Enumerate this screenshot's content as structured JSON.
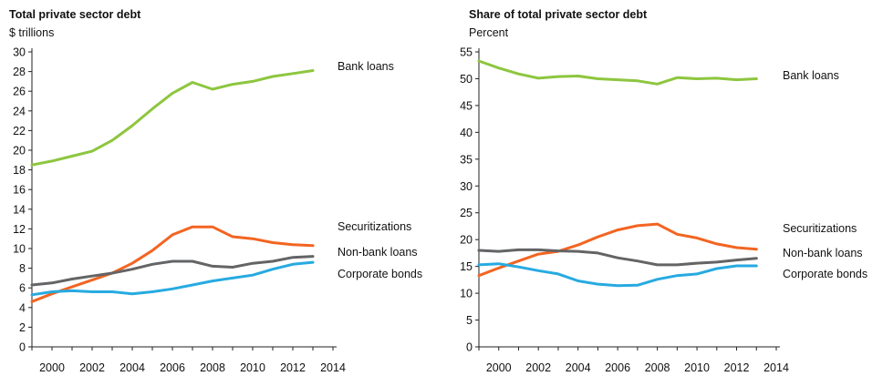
{
  "chart_data": [
    {
      "type": "line",
      "title": "Total private sector debt",
      "ylabel": "$ trillions",
      "ylim": [
        0,
        30
      ],
      "yticks": [
        0,
        2,
        4,
        6,
        8,
        10,
        12,
        14,
        16,
        18,
        20,
        22,
        24,
        26,
        28,
        30
      ],
      "xlim": [
        1999,
        2014
      ],
      "xticks": [
        2000,
        2002,
        2004,
        2006,
        2008,
        2010,
        2012,
        2014
      ],
      "grid": false,
      "x": [
        1999,
        2000,
        2001,
        2002,
        2003,
        2004,
        2005,
        2006,
        2007,
        2008,
        2009,
        2010,
        2011,
        2012,
        2013
      ],
      "series": [
        {
          "name": "Bank loans",
          "color": "#8dc63f",
          "values": [
            18.5,
            18.9,
            19.4,
            19.9,
            21.0,
            22.5,
            24.2,
            25.8,
            26.9,
            26.2,
            26.7,
            27.0,
            27.5,
            27.8,
            28.1
          ]
        },
        {
          "name": "Securitizations",
          "color": "#f26522",
          "values": [
            4.6,
            5.4,
            6.1,
            6.8,
            7.5,
            8.5,
            9.8,
            11.4,
            12.2,
            12.2,
            11.2,
            11.0,
            10.6,
            10.4,
            10.3
          ]
        },
        {
          "name": "Non-bank loans",
          "color": "#636466",
          "values": [
            6.3,
            6.5,
            6.9,
            7.2,
            7.5,
            7.9,
            8.4,
            8.7,
            8.7,
            8.2,
            8.1,
            8.5,
            8.7,
            9.1,
            9.2
          ]
        },
        {
          "name": "Corporate bonds",
          "color": "#27aae1",
          "values": [
            5.3,
            5.6,
            5.7,
            5.6,
            5.6,
            5.4,
            5.6,
            5.9,
            6.3,
            6.7,
            7.0,
            7.3,
            7.9,
            8.4,
            8.6
          ]
        }
      ]
    },
    {
      "type": "line",
      "title": "Share of total private sector debt",
      "ylabel": "Percent",
      "ylim": [
        0,
        55
      ],
      "yticks": [
        0,
        5,
        10,
        15,
        20,
        25,
        30,
        35,
        40,
        45,
        50,
        55
      ],
      "xlim": [
        1999,
        2014
      ],
      "xticks": [
        2000,
        2002,
        2004,
        2006,
        2008,
        2010,
        2012,
        2014
      ],
      "grid": false,
      "x": [
        1999,
        2000,
        2001,
        2002,
        2003,
        2004,
        2005,
        2006,
        2007,
        2008,
        2009,
        2010,
        2011,
        2012,
        2013
      ],
      "series": [
        {
          "name": "Bank loans",
          "color": "#8dc63f",
          "values": [
            53.3,
            52.0,
            50.9,
            50.1,
            50.4,
            50.5,
            50.0,
            49.8,
            49.6,
            49.0,
            50.2,
            50.0,
            50.1,
            49.8,
            50.0
          ]
        },
        {
          "name": "Securitizations",
          "color": "#f26522",
          "values": [
            13.3,
            14.7,
            16.0,
            17.3,
            17.8,
            19.0,
            20.5,
            21.8,
            22.6,
            22.9,
            21.0,
            20.3,
            19.2,
            18.5,
            18.2
          ]
        },
        {
          "name": "Non-bank loans",
          "color": "#636466",
          "values": [
            18.0,
            17.8,
            18.1,
            18.1,
            17.9,
            17.8,
            17.5,
            16.6,
            16.0,
            15.3,
            15.3,
            15.6,
            15.8,
            16.2,
            16.5
          ]
        },
        {
          "name": "Corporate bonds",
          "color": "#27aae1",
          "values": [
            15.3,
            15.5,
            14.9,
            14.2,
            13.6,
            12.3,
            11.7,
            11.4,
            11.5,
            12.6,
            13.3,
            13.6,
            14.6,
            15.1,
            15.1
          ]
        }
      ]
    }
  ]
}
